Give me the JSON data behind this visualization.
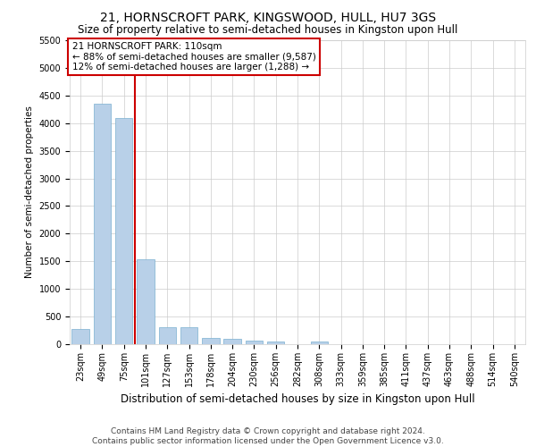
{
  "title": "21, HORNSCROFT PARK, KINGSWOOD, HULL, HU7 3GS",
  "subtitle": "Size of property relative to semi-detached houses in Kingston upon Hull",
  "xlabel": "Distribution of semi-detached houses by size in Kingston upon Hull",
  "ylabel": "Number of semi-detached properties",
  "categories": [
    "23sqm",
    "49sqm",
    "75sqm",
    "101sqm",
    "127sqm",
    "153sqm",
    "178sqm",
    "204sqm",
    "230sqm",
    "256sqm",
    "282sqm",
    "308sqm",
    "333sqm",
    "359sqm",
    "385sqm",
    "411sqm",
    "437sqm",
    "463sqm",
    "488sqm",
    "514sqm",
    "540sqm"
  ],
  "values": [
    270,
    4350,
    4100,
    1530,
    310,
    310,
    120,
    90,
    60,
    45,
    0,
    50,
    0,
    0,
    0,
    0,
    0,
    0,
    0,
    0,
    0
  ],
  "bar_color": "#b8d0e8",
  "bar_edge_color": "#7aafd0",
  "property_size": "110sqm",
  "property_name": "21 HORNSCROFT PARK",
  "pct_smaller": 88,
  "n_smaller": "9,587",
  "pct_larger": 12,
  "n_larger": "1,288",
  "annotation_box_color": "#ffffff",
  "annotation_box_edge_color": "#cc0000",
  "vline_color": "#cc0000",
  "vline_x": 2.5,
  "ylim": [
    0,
    5500
  ],
  "yticks": [
    0,
    500,
    1000,
    1500,
    2000,
    2500,
    3000,
    3500,
    4000,
    4500,
    5000,
    5500
  ],
  "footer_line1": "Contains HM Land Registry data © Crown copyright and database right 2024.",
  "footer_line2": "Contains public sector information licensed under the Open Government Licence v3.0.",
  "title_fontsize": 10,
  "subtitle_fontsize": 8.5,
  "xlabel_fontsize": 8.5,
  "ylabel_fontsize": 7.5,
  "tick_fontsize": 7,
  "annotation_fontsize": 7.5,
  "footer_fontsize": 6.5
}
